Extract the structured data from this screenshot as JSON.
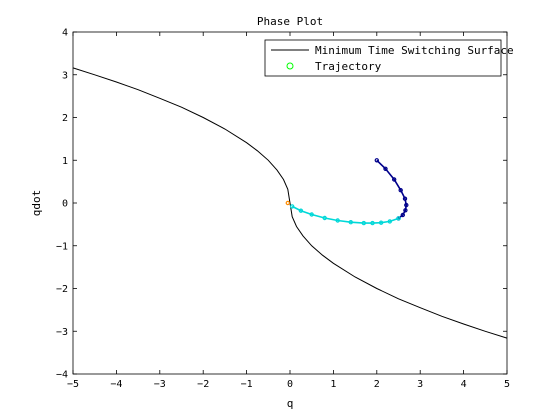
{
  "chart_data": {
    "type": "line",
    "title": "Phase Plot",
    "xlabel": "q",
    "ylabel": "qdot",
    "xlim": [
      -5,
      5
    ],
    "ylim": [
      -4,
      4
    ],
    "xticks": [
      -5,
      -4,
      -3,
      -2,
      -1,
      0,
      1,
      2,
      3,
      4,
      5
    ],
    "yticks": [
      -4,
      -3,
      -2,
      -1,
      0,
      1,
      2,
      3,
      4
    ],
    "grid": false,
    "legend_position": "top-right",
    "series": [
      {
        "name": "Minimum Time Switching Surface",
        "style": "line",
        "color": "#000000",
        "x": [
          -5,
          -4.5,
          -4,
          -3.5,
          -3,
          -2.5,
          -2,
          -1.5,
          -1,
          -0.75,
          -0.5,
          -0.3,
          -0.15,
          -0.05,
          0,
          0.05,
          0.15,
          0.3,
          0.5,
          0.75,
          1,
          1.5,
          2,
          2.5,
          3,
          3.5,
          4,
          4.5,
          5
        ],
        "y": [
          3.16,
          3.0,
          2.83,
          2.65,
          2.45,
          2.24,
          2.0,
          1.73,
          1.41,
          1.22,
          1.0,
          0.77,
          0.55,
          0.32,
          0,
          -0.32,
          -0.55,
          -0.77,
          -1.0,
          -1.22,
          -1.41,
          -1.73,
          -2.0,
          -2.24,
          -2.45,
          -2.65,
          -2.83,
          -3.0,
          -3.16
        ]
      },
      {
        "name": "Trajectory",
        "style": "markers",
        "marker": "circle",
        "legend_marker_color": "#00ff00",
        "segments": [
          {
            "color": "#00008b",
            "x": [
              2.0,
              2.2,
              2.4,
              2.55,
              2.65,
              2.68,
              2.66,
              2.6,
              2.5
            ],
            "y": [
              1.0,
              0.8,
              0.55,
              0.3,
              0.1,
              -0.05,
              -0.17,
              -0.28,
              -0.36
            ]
          },
          {
            "color": "#00d8d8",
            "x": [
              2.5,
              2.3,
              2.1,
              1.9,
              1.7,
              1.4,
              1.1,
              0.8,
              0.5,
              0.25,
              0.05
            ],
            "y": [
              -0.36,
              -0.43,
              -0.46,
              -0.47,
              -0.47,
              -0.45,
              -0.41,
              -0.35,
              -0.27,
              -0.18,
              -0.08
            ]
          },
          {
            "color": "#ff8c00",
            "x": [
              -0.05
            ],
            "y": [
              0.0
            ]
          }
        ]
      }
    ]
  }
}
